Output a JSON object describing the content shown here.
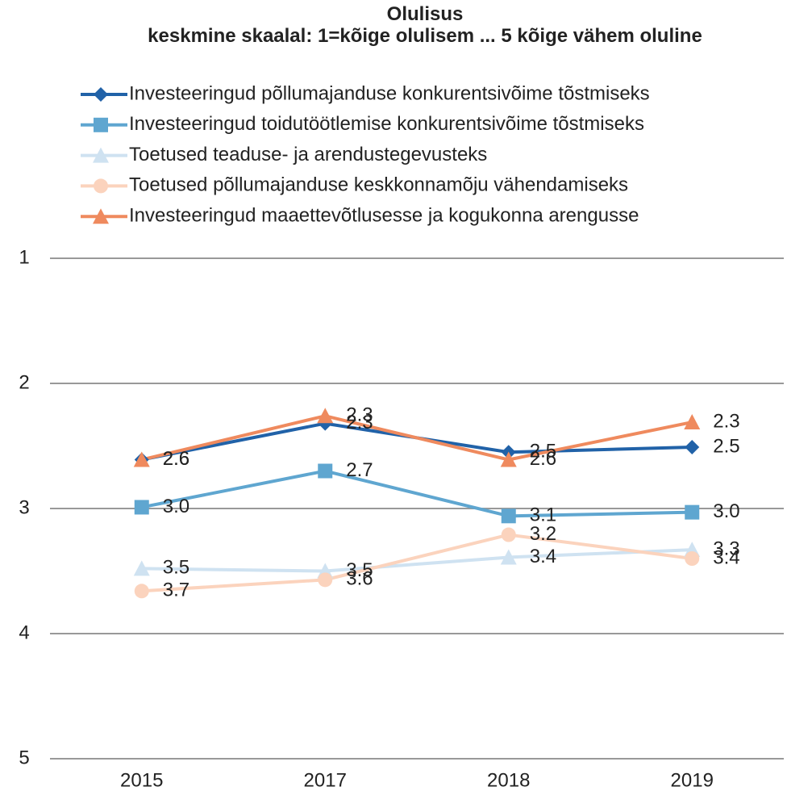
{
  "chart_data": {
    "type": "line",
    "title": "Olulisus",
    "subtitle": "keskmine skaalal: 1=kõige olulisem ... 5 kõige vähem oluline",
    "categories": [
      "2015",
      "2017",
      "2018",
      "2019"
    ],
    "series": [
      {
        "name": "Investeeringud põllumajanduse konkurentsivõime tõstmiseks",
        "color": "#2162a8",
        "marker": "diamond",
        "values": [
          2.61,
          2.32,
          2.55,
          2.51
        ],
        "value_labels": [
          "2.6",
          "2.3",
          "2.5",
          "2.5"
        ]
      },
      {
        "name": "Investeeringud toidutöötlemise konkurentsivõime tõstmiseks",
        "color": "#5fa6d0",
        "marker": "square",
        "values": [
          2.99,
          2.7,
          3.06,
          3.03
        ],
        "value_labels": [
          "3.0",
          "2.7",
          "3.1",
          "3.0"
        ]
      },
      {
        "name": "Toetused teaduse- ja arendustegevusteks",
        "color": "#cfe2f1",
        "marker": "triangle",
        "values": [
          3.48,
          3.5,
          3.39,
          3.33
        ],
        "value_labels": [
          "3.5",
          "3.5",
          "3.4",
          "3.3"
        ]
      },
      {
        "name": "Toetused põllumajanduse keskkonnamõju vähendamiseks",
        "color": "#fbd3bd",
        "marker": "circle",
        "values": [
          3.66,
          3.57,
          3.21,
          3.4
        ],
        "value_labels": [
          "3.7",
          "3.6",
          "3.2",
          "3.4"
        ]
      },
      {
        "name": "Investeeringud maaettevõtlusesse ja kogukonna arengusse",
        "color": "#ef8a5e",
        "marker": "triangle",
        "values": [
          2.61,
          2.26,
          2.61,
          2.31
        ],
        "value_labels": [
          "2.6",
          "2.3",
          "2.6",
          "2.3"
        ]
      }
    ],
    "ylim": [
      1,
      5
    ],
    "yticks": [
      1,
      2,
      3,
      4,
      5
    ],
    "y_inverted": true,
    "grid": true,
    "legend": "top"
  }
}
